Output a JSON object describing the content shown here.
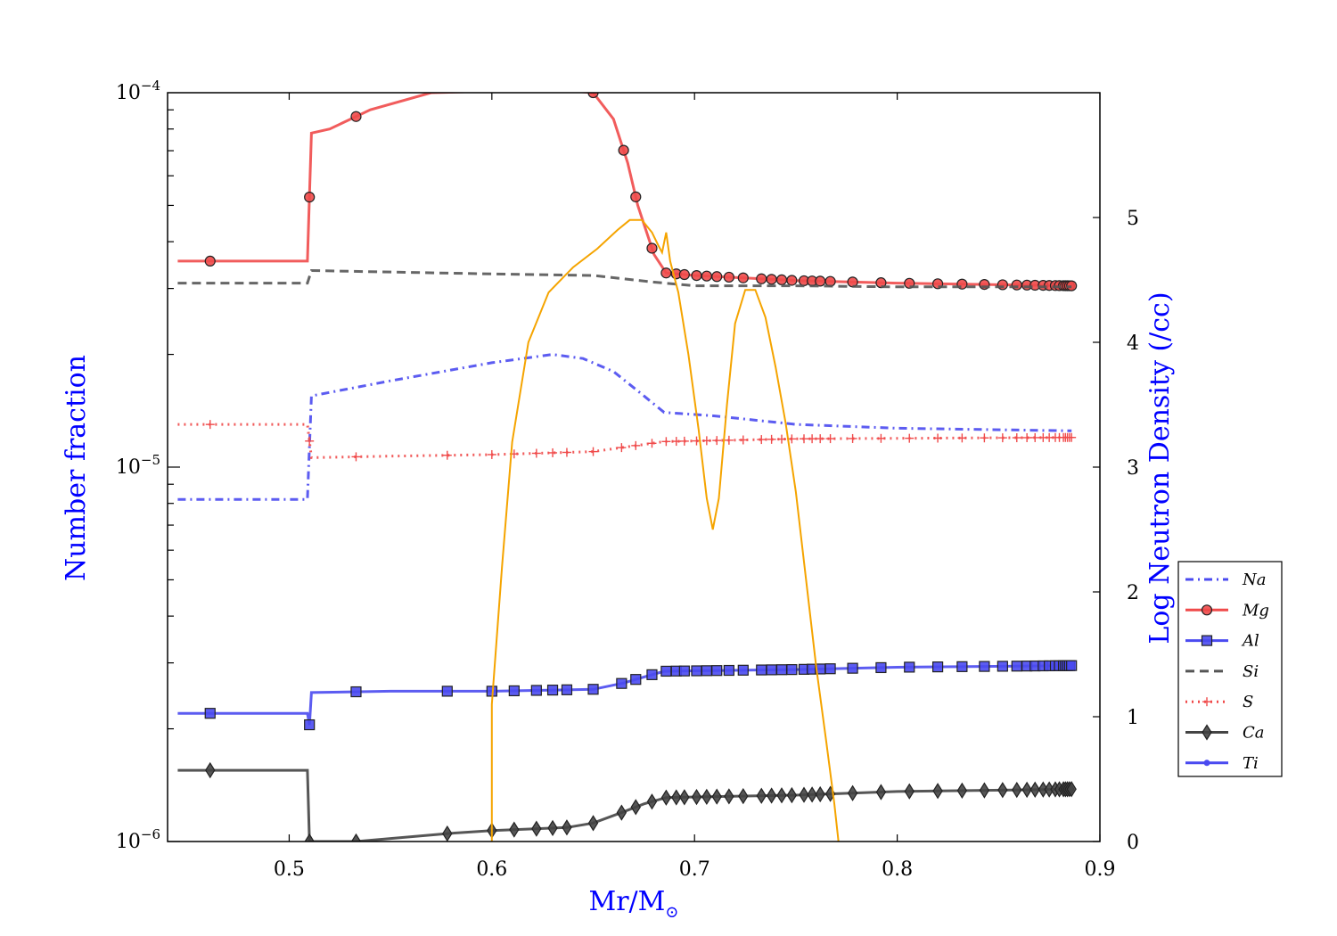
{
  "chart_data": {
    "type": "line",
    "xlabel": "Mr/M",
    "xlabel_sub": "⊙",
    "ylabel_left": "Number fraction",
    "ylabel_right": "Log Neutron Density (/cc)",
    "xlim": [
      0.44,
      0.9
    ],
    "ylim_left": [
      1e-06,
      0.0001
    ],
    "yscale_left": "log",
    "ylim_right": [
      0,
      6
    ],
    "x_ticks": [
      "0.5",
      "0.6",
      "0.7",
      "0.8",
      "0.9"
    ],
    "y_left_ticks": [
      {
        "mant": "10",
        "exp": "−4",
        "value": 0.0001
      },
      {
        "mant": "10",
        "exp": "−5",
        "value": 1e-05
      },
      {
        "mant": "10",
        "exp": "−6",
        "value": 1e-06
      }
    ],
    "y_right_ticks": [
      "0",
      "1",
      "2",
      "3",
      "4",
      "5"
    ],
    "legend_position": "right, outside plot area",
    "series": [
      {
        "name": "Na",
        "axis": "left",
        "color": "#4a4af0",
        "linestyle": "dashdot",
        "marker": "none",
        "points": [
          [
            0.445,
            8.2e-06
          ],
          [
            0.509,
            8.2e-06
          ],
          [
            0.511,
            1.55e-05
          ],
          [
            0.55,
            1.7e-05
          ],
          [
            0.6,
            1.9e-05
          ],
          [
            0.63,
            2e-05
          ],
          [
            0.645,
            1.95e-05
          ],
          [
            0.66,
            1.8e-05
          ],
          [
            0.675,
            1.55e-05
          ],
          [
            0.685,
            1.4e-05
          ],
          [
            0.71,
            1.37e-05
          ],
          [
            0.75,
            1.3e-05
          ],
          [
            0.8,
            1.27e-05
          ],
          [
            0.886,
            1.25e-05
          ]
        ]
      },
      {
        "name": "Mg",
        "axis": "left",
        "color": "#f04a4a",
        "linestyle": "solid",
        "marker": "circle",
        "points": [
          [
            0.445,
            3.55e-05
          ],
          [
            0.509,
            3.55e-05
          ],
          [
            0.511,
            7.8e-05
          ],
          [
            0.52,
            8e-05
          ],
          [
            0.54,
            9e-05
          ],
          [
            0.57,
            0.0001
          ],
          [
            0.63,
            0.000102
          ],
          [
            0.65,
            0.0001
          ],
          [
            0.66,
            8.5e-05
          ],
          [
            0.667,
            6.5e-05
          ],
          [
            0.672,
            5e-05
          ],
          [
            0.68,
            3.7e-05
          ],
          [
            0.686,
            3.3e-05
          ],
          [
            0.7,
            3.25e-05
          ],
          [
            0.75,
            3.15e-05
          ],
          [
            0.8,
            3.1e-05
          ],
          [
            0.886,
            3.05e-05
          ]
        ],
        "marker_x": [
          0.461,
          0.51,
          0.533,
          0.65,
          0.665,
          0.671,
          0.679,
          0.686,
          0.691,
          0.695,
          0.701,
          0.706,
          0.711,
          0.717,
          0.724,
          0.733,
          0.738,
          0.743,
          0.748,
          0.754,
          0.758,
          0.762,
          0.767,
          0.778,
          0.792,
          0.806,
          0.82,
          0.832,
          0.843,
          0.852,
          0.859,
          0.864,
          0.868,
          0.872,
          0.875,
          0.878,
          0.88,
          0.882,
          0.883,
          0.884,
          0.885,
          0.886
        ]
      },
      {
        "name": "Al",
        "axis": "left",
        "color": "#4a4af0",
        "linestyle": "solid",
        "marker": "square",
        "points": [
          [
            0.445,
            2.2e-06
          ],
          [
            0.509,
            2.2e-06
          ],
          [
            0.51,
            2.05e-06
          ],
          [
            0.511,
            2.5e-06
          ],
          [
            0.55,
            2.52e-06
          ],
          [
            0.6,
            2.52e-06
          ],
          [
            0.65,
            2.55e-06
          ],
          [
            0.665,
            2.65e-06
          ],
          [
            0.675,
            2.75e-06
          ],
          [
            0.685,
            2.85e-06
          ],
          [
            0.75,
            2.88e-06
          ],
          [
            0.8,
            2.92e-06
          ],
          [
            0.886,
            2.95e-06
          ]
        ],
        "marker_x": [
          0.461,
          0.51,
          0.533,
          0.578,
          0.6,
          0.611,
          0.622,
          0.63,
          0.637,
          0.65,
          0.664,
          0.671,
          0.679,
          0.686,
          0.691,
          0.695,
          0.701,
          0.706,
          0.711,
          0.717,
          0.724,
          0.733,
          0.738,
          0.743,
          0.748,
          0.754,
          0.758,
          0.762,
          0.767,
          0.778,
          0.792,
          0.806,
          0.82,
          0.832,
          0.843,
          0.852,
          0.859,
          0.864,
          0.868,
          0.872,
          0.875,
          0.878,
          0.88,
          0.882,
          0.883,
          0.884,
          0.885,
          0.886
        ]
      },
      {
        "name": "Si",
        "axis": "left",
        "color": "#555555",
        "linestyle": "dashed",
        "marker": "none",
        "points": [
          [
            0.445,
            3.1e-05
          ],
          [
            0.509,
            3.1e-05
          ],
          [
            0.511,
            3.35e-05
          ],
          [
            0.6,
            3.28e-05
          ],
          [
            0.65,
            3.25e-05
          ],
          [
            0.68,
            3.12e-05
          ],
          [
            0.7,
            3.05e-05
          ],
          [
            0.75,
            3.05e-05
          ],
          [
            0.8,
            3.03e-05
          ],
          [
            0.886,
            3.03e-05
          ]
        ]
      },
      {
        "name": "S",
        "axis": "left",
        "color": "#f04a4a",
        "linestyle": "dotted",
        "marker": "plus",
        "points": [
          [
            0.445,
            1.3e-05
          ],
          [
            0.509,
            1.3e-05
          ],
          [
            0.511,
            1.06e-05
          ],
          [
            0.55,
            1.07e-05
          ],
          [
            0.6,
            1.08e-05
          ],
          [
            0.65,
            1.1e-05
          ],
          [
            0.685,
            1.17e-05
          ],
          [
            0.75,
            1.19e-05
          ],
          [
            0.886,
            1.2e-05
          ]
        ],
        "marker_x": [
          0.461,
          0.51,
          0.533,
          0.578,
          0.6,
          0.611,
          0.622,
          0.63,
          0.637,
          0.65,
          0.664,
          0.671,
          0.679,
          0.686,
          0.691,
          0.695,
          0.701,
          0.706,
          0.711,
          0.717,
          0.724,
          0.733,
          0.738,
          0.743,
          0.748,
          0.754,
          0.758,
          0.762,
          0.767,
          0.778,
          0.792,
          0.806,
          0.82,
          0.832,
          0.843,
          0.852,
          0.859,
          0.864,
          0.868,
          0.872,
          0.875,
          0.878,
          0.88,
          0.882,
          0.883,
          0.884,
          0.885,
          0.886
        ]
      },
      {
        "name": "Ca",
        "axis": "left",
        "color": "#444444",
        "linestyle": "solid",
        "marker": "diamond",
        "points": [
          [
            0.445,
            1.55e-06
          ],
          [
            0.509,
            1.55e-06
          ],
          [
            0.51,
            1e-06
          ],
          [
            0.533,
            1e-06
          ],
          [
            0.578,
            1.05e-06
          ],
          [
            0.6,
            1.07e-06
          ],
          [
            0.637,
            1.09e-06
          ],
          [
            0.65,
            1.12e-06
          ],
          [
            0.665,
            1.2e-06
          ],
          [
            0.675,
            1.26e-06
          ],
          [
            0.686,
            1.31e-06
          ],
          [
            0.75,
            1.33e-06
          ],
          [
            0.8,
            1.36e-06
          ],
          [
            0.886,
            1.38e-06
          ]
        ],
        "marker_x": [
          0.461,
          0.51,
          0.533,
          0.578,
          0.6,
          0.611,
          0.622,
          0.63,
          0.637,
          0.65,
          0.664,
          0.671,
          0.679,
          0.686,
          0.691,
          0.695,
          0.701,
          0.706,
          0.711,
          0.717,
          0.724,
          0.733,
          0.738,
          0.743,
          0.748,
          0.754,
          0.758,
          0.762,
          0.767,
          0.778,
          0.792,
          0.806,
          0.82,
          0.832,
          0.843,
          0.852,
          0.859,
          0.864,
          0.868,
          0.872,
          0.875,
          0.878,
          0.88,
          0.882,
          0.883,
          0.884,
          0.885,
          0.886
        ]
      },
      {
        "name": "Ti",
        "axis": "left",
        "color": "#4a4af0",
        "linestyle": "solid",
        "marker": "dot",
        "points": []
      },
      {
        "axis": "right",
        "color": "#f5a400",
        "linestyle": "solid",
        "marker": "none",
        "in_legend": false,
        "points": [
          [
            0.6,
            0.0
          ],
          [
            0.6,
            1.1
          ],
          [
            0.605,
            2.2
          ],
          [
            0.61,
            3.2
          ],
          [
            0.618,
            4.0
          ],
          [
            0.628,
            4.4
          ],
          [
            0.64,
            4.6
          ],
          [
            0.652,
            4.75
          ],
          [
            0.662,
            4.9
          ],
          [
            0.668,
            4.98
          ],
          [
            0.674,
            4.98
          ],
          [
            0.679,
            4.88
          ],
          [
            0.682,
            4.78
          ],
          [
            0.684,
            4.72
          ],
          [
            0.686,
            4.88
          ],
          [
            0.688,
            4.65
          ],
          [
            0.692,
            4.4
          ],
          [
            0.697,
            3.9
          ],
          [
            0.702,
            3.3
          ],
          [
            0.706,
            2.75
          ],
          [
            0.709,
            2.5
          ],
          [
            0.712,
            2.75
          ],
          [
            0.716,
            3.5
          ],
          [
            0.72,
            4.15
          ],
          [
            0.725,
            4.42
          ],
          [
            0.73,
            4.42
          ],
          [
            0.735,
            4.2
          ],
          [
            0.74,
            3.8
          ],
          [
            0.745,
            3.35
          ],
          [
            0.75,
            2.8
          ],
          [
            0.755,
            2.1
          ],
          [
            0.76,
            1.4
          ],
          [
            0.765,
            0.8
          ],
          [
            0.769,
            0.3
          ],
          [
            0.771,
            0.0
          ]
        ]
      }
    ]
  }
}
